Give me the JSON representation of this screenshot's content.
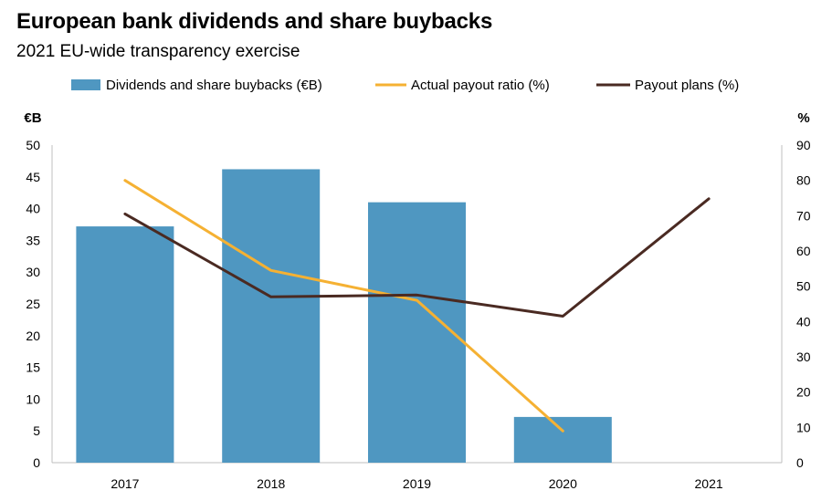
{
  "chart_data": {
    "type": "bar",
    "title": "European bank dividends and share buybacks",
    "subtitle": "2021 EU-wide transparency exercise",
    "categories": [
      "2017",
      "2018",
      "2019",
      "2020",
      "2021"
    ],
    "left_axis_label": "€B",
    "right_axis_label": "%",
    "ylim": [
      0,
      50
    ],
    "y2lim": [
      0,
      90
    ],
    "yticks": [
      "0",
      "5",
      "10",
      "15",
      "20",
      "25",
      "30",
      "35",
      "40",
      "45",
      "50"
    ],
    "y2ticks": [
      "0",
      "10",
      "20",
      "30",
      "40",
      "50",
      "60",
      "70",
      "80",
      "90"
    ],
    "series": [
      {
        "name": "Dividends and share buybacks (€B)",
        "type": "bar",
        "axis": "left",
        "color": "#4f97c1",
        "values": [
          37.2,
          46.2,
          41.0,
          7.2,
          null
        ]
      },
      {
        "name": "Actual payout ratio (%)",
        "type": "line",
        "axis": "right",
        "color": "#f5b133",
        "values": [
          80,
          54.5,
          46,
          9,
          null
        ]
      },
      {
        "name": "Payout plans (%)",
        "type": "line",
        "axis": "right",
        "color": "#4a2a22",
        "values": [
          70.5,
          47,
          47.5,
          41.5,
          74.8
        ]
      }
    ],
    "legend_position": "top"
  }
}
